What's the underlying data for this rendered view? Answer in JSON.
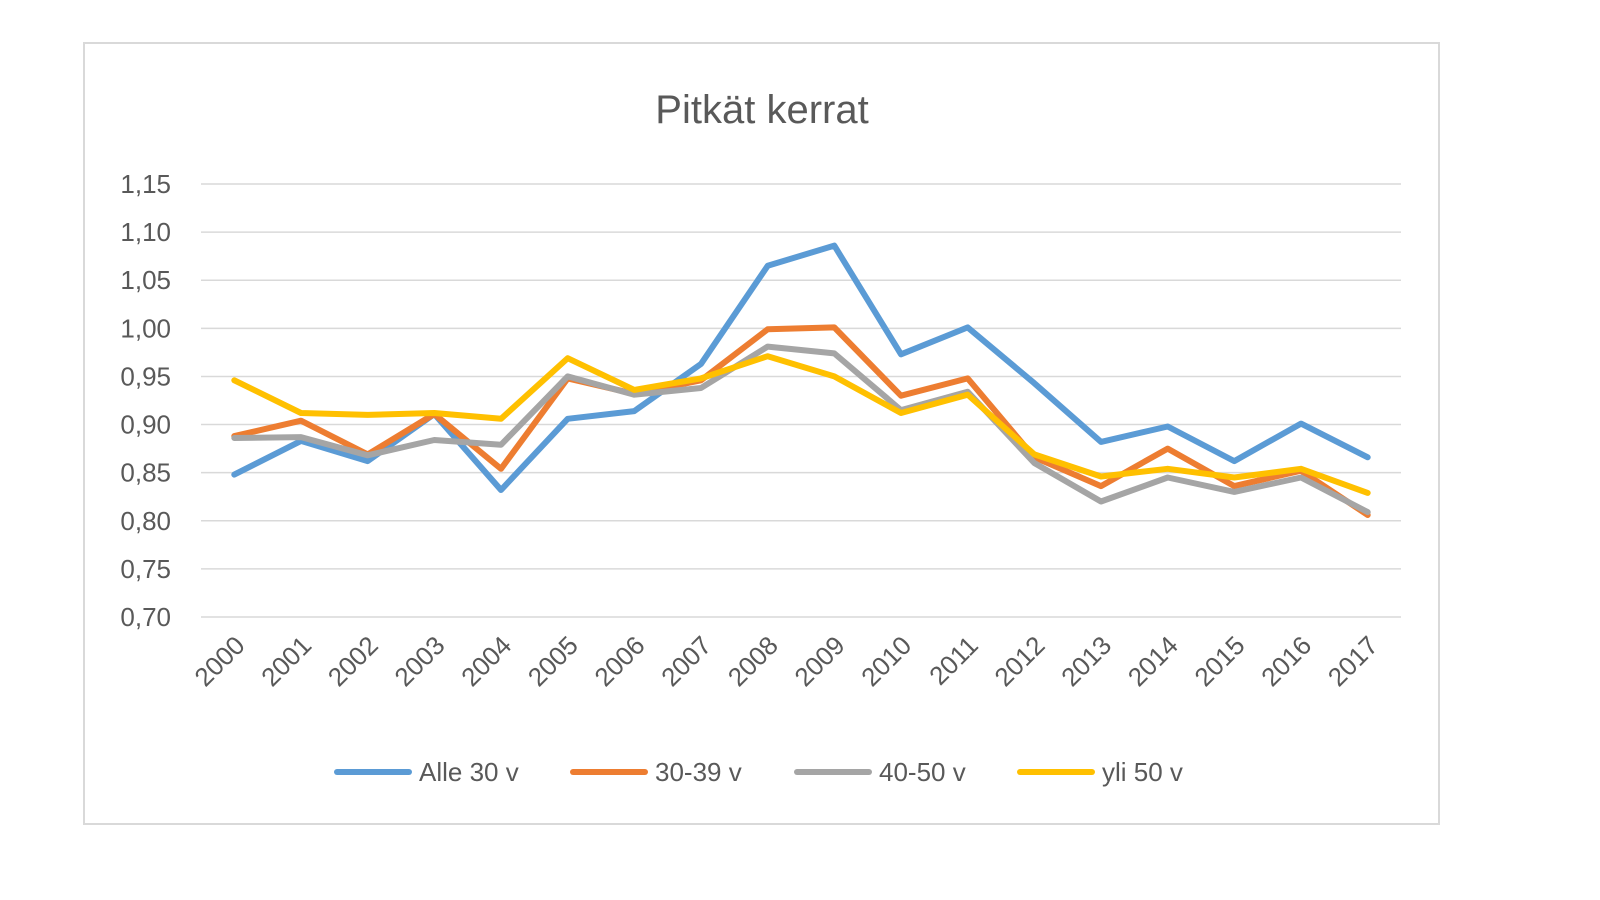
{
  "chart_data": {
    "type": "line",
    "title": "Pitkät kerrat",
    "xlabel": "",
    "ylabel": "",
    "categories": [
      "2000",
      "2001",
      "2002",
      "2003",
      "2004",
      "2005",
      "2006",
      "2007",
      "2008",
      "2009",
      "2010",
      "2011",
      "2012",
      "2013",
      "2014",
      "2015",
      "2016",
      "2017"
    ],
    "ylim": [
      0.7,
      1.15
    ],
    "yticks": [
      1.15,
      1.1,
      1.05,
      1.0,
      0.95,
      0.9,
      0.85,
      0.8,
      0.75,
      0.7
    ],
    "ytick_labels": [
      "1,15",
      "1,10",
      "1,05",
      "1,00",
      "0,95",
      "0,90",
      "0,85",
      "0,80",
      "0,75",
      "0,70"
    ],
    "grid": true,
    "legend_position": "bottom",
    "series": [
      {
        "name": "Alle 30 v",
        "color": "#5b9bd5",
        "values": [
          0.848,
          0.883,
          0.862,
          0.911,
          0.832,
          0.906,
          0.914,
          0.963,
          1.065,
          1.086,
          0.973,
          1.001,
          0.943,
          0.882,
          0.898,
          0.862,
          0.901,
          0.866
        ]
      },
      {
        "name": "30-39 v",
        "color": "#ed7d31",
        "values": [
          0.888,
          0.904,
          0.869,
          0.911,
          0.854,
          0.948,
          0.932,
          0.946,
          0.999,
          1.001,
          0.93,
          0.948,
          0.866,
          0.836,
          0.875,
          0.836,
          0.852,
          0.806
        ]
      },
      {
        "name": "40-50 v",
        "color": "#a5a5a5",
        "values": [
          0.886,
          0.887,
          0.868,
          0.884,
          0.879,
          0.95,
          0.931,
          0.938,
          0.981,
          0.974,
          0.915,
          0.934,
          0.86,
          0.82,
          0.845,
          0.83,
          0.845,
          0.809
        ]
      },
      {
        "name": "yli 50 v",
        "color": "#ffc000",
        "values": [
          0.946,
          0.912,
          0.91,
          0.912,
          0.906,
          0.969,
          0.936,
          0.948,
          0.971,
          0.95,
          0.912,
          0.931,
          0.869,
          0.846,
          0.854,
          0.845,
          0.854,
          0.829
        ]
      }
    ]
  }
}
